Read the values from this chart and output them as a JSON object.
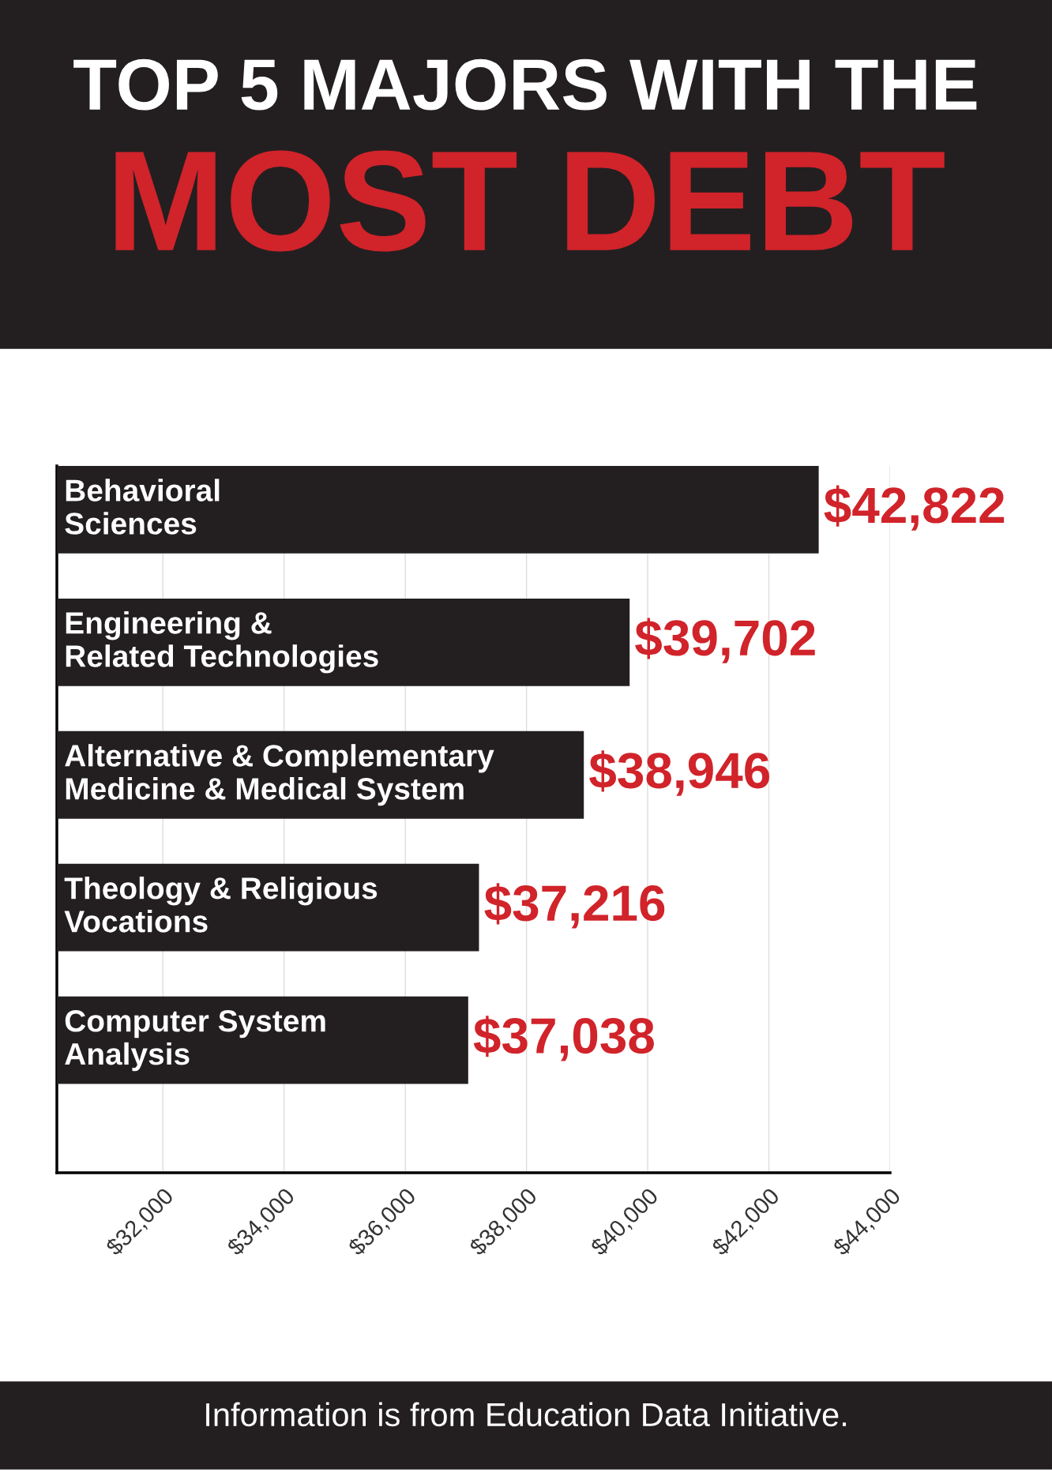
{
  "chart_data": {
    "type": "bar",
    "orientation": "horizontal",
    "title": "TOP 5 MAJORS WITH THE",
    "subtitle": "MOST DEBT",
    "categories": [
      "Behavioral\nSciences",
      "Engineering &\nRelated Technologies",
      "Alternative & Complementary\nMedicine & Medical System",
      "Theology & Religious\nVocations",
      "Computer System\nAnalysis"
    ],
    "values": [
      42822,
      39702,
      38946,
      37216,
      37038
    ],
    "value_labels": [
      "$42,822",
      "$39,702",
      "$38,946",
      "$37,216",
      "$37,038"
    ],
    "color": "#231f20",
    "xlim": [
      30250,
      44000
    ],
    "xticks": [
      {
        "value": 32000,
        "label": "$32,000"
      },
      {
        "value": 34000,
        "label": "$34,000"
      },
      {
        "value": 36000,
        "label": "$36,000"
      },
      {
        "value": 38000,
        "label": "$38,000"
      },
      {
        "value": 40000,
        "label": "$40,000"
      },
      {
        "value": 42000,
        "label": "$42,000"
      },
      {
        "value": 44000,
        "label": "$44,000"
      }
    ],
    "grid": "x",
    "annotations": [
      "Information is from Education Data Initiative."
    ]
  }
}
